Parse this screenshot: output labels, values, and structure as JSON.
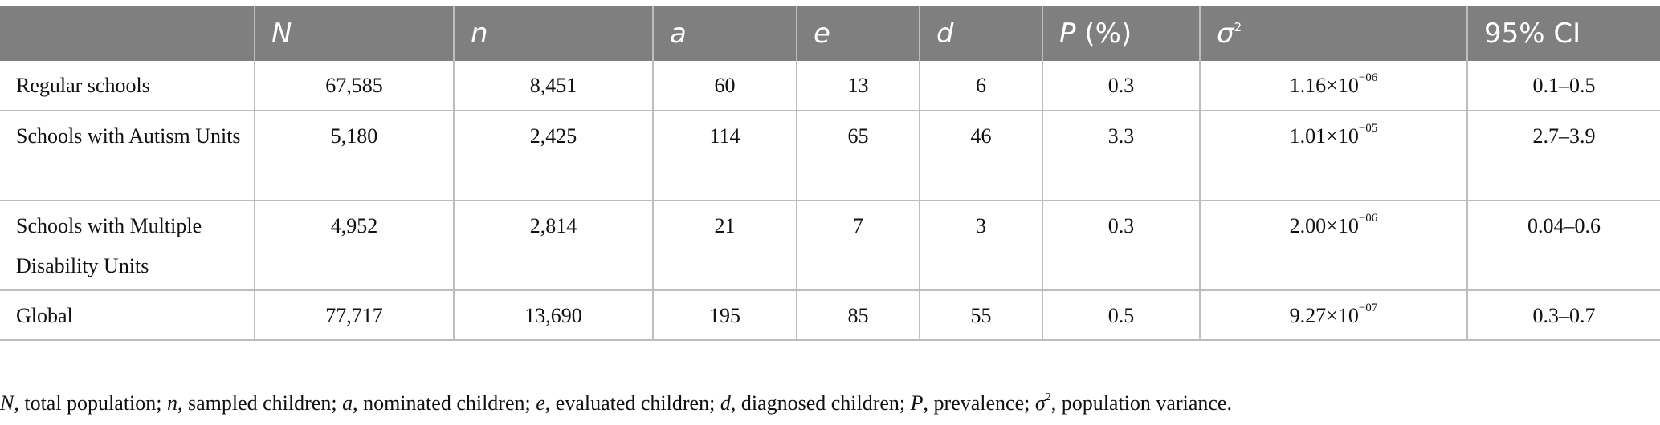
{
  "table": {
    "headers": [
      "",
      "N",
      "n",
      "a",
      "e",
      "d",
      "P (%)",
      "σ",
      "95% CI"
    ],
    "sigma_exponent": "2",
    "rows": [
      {
        "label": "Regular schools",
        "N": "67,585",
        "n": "8,451",
        "a": "60",
        "e": "13",
        "d": "6",
        "P": "0.3",
        "var_base": "1.16×10",
        "var_exp": "−06",
        "ci": "0.1–0.5"
      },
      {
        "label": "Schools with Autism Units",
        "N": "5,180",
        "n": "2,425",
        "a": "114",
        "e": "65",
        "d": "46",
        "P": "3.3",
        "var_base": "1.01×10",
        "var_exp": "−05",
        "ci": "2.7–3.9"
      },
      {
        "label": "Schools with Multiple Disability Units",
        "N": "4,952",
        "n": "2,814",
        "a": "21",
        "e": "7",
        "d": "3",
        "P": "0.3",
        "var_base": "2.00×10",
        "var_exp": "−06",
        "ci": "0.04–0.6"
      },
      {
        "label": "Global",
        "N": "77,717",
        "n": "13,690",
        "a": "195",
        "e": "85",
        "d": "55",
        "P": "0.5",
        "var_base": "9.27×10",
        "var_exp": "−07",
        "ci": "0.3–0.7"
      }
    ]
  },
  "footnote": {
    "parts": [
      {
        "sym": "N",
        "text": ", total population; "
      },
      {
        "sym": "n",
        "text": ", sampled children; "
      },
      {
        "sym": "a",
        "text": ", nominated children; "
      },
      {
        "sym": "e",
        "text": ", evaluated children; "
      },
      {
        "sym": "d",
        "text": ", diagnosed children; "
      },
      {
        "sym": "P",
        "text": ", prevalence; "
      }
    ],
    "sigma": "σ",
    "sigma_exp": "2",
    "last_text": ", population variance."
  }
}
